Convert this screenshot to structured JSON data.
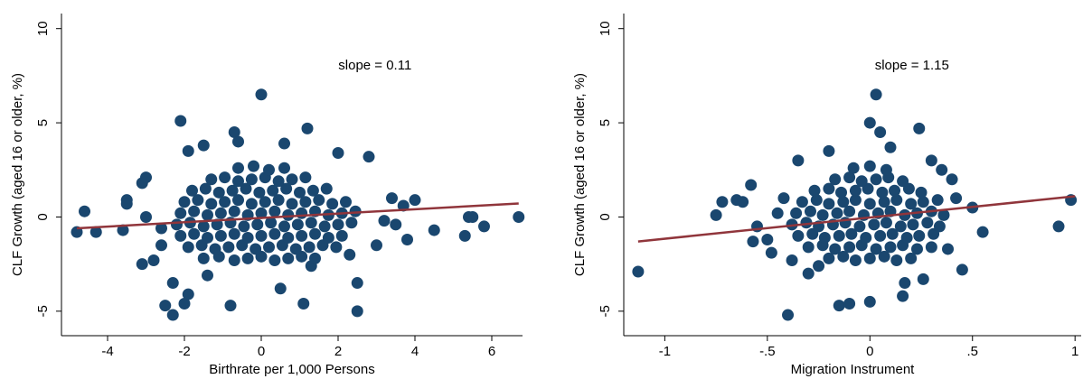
{
  "chart_data": [
    {
      "type": "scatter",
      "annotation": "slope = 0.11",
      "xlabel": "Birthrate per 1,000 Persons",
      "ylabel": "CLF Growth (aged 16 or older, %)",
      "color": "#1a476f",
      "xlim": [
        -5.2,
        6.8
      ],
      "ylim": [
        -6.3,
        10.8
      ],
      "xticks": [
        -4,
        -2,
        0,
        2,
        4,
        6
      ],
      "yticks": [
        -5,
        0,
        5,
        10
      ],
      "fit": {
        "color": "#90353b",
        "x": [
          -4.8,
          6.7
        ],
        "y": [
          -0.6,
          0.72
        ]
      },
      "x": [
        -4.8,
        -4.6,
        -4.3,
        -3.5,
        -3.5,
        -3.6,
        -3.1,
        -3.0,
        -3.1,
        -2.8,
        -2.6,
        -2.5,
        -2.3,
        -2.3,
        -2.0,
        -1.9,
        -2.1,
        -1.9,
        -1.5,
        -0.7,
        -0.6,
        0.0,
        0.6,
        1.2,
        2.0,
        2.8,
        2.5,
        2.5,
        1.1,
        0.5,
        -1.4,
        -0.8,
        3.4,
        3.7,
        4.0,
        3.5,
        3.8,
        4.5,
        5.3,
        5.4,
        5.5,
        5.8,
        6.7,
        3.0,
        3.2,
        2.3,
        1.3,
        -2.6,
        -3.0,
        -1.5,
        -1.1,
        -0.7,
        -0.35,
        0.0,
        0.35,
        0.7,
        1.05,
        1.4,
        -1.9,
        -1.55,
        -1.2,
        -0.85,
        -0.5,
        -0.15,
        0.2,
        0.55,
        0.9,
        1.25,
        1.6,
        1.95,
        -2.1,
        -1.75,
        -1.4,
        -1.05,
        -0.7,
        -0.35,
        0.0,
        0.35,
        0.7,
        1.05,
        1.4,
        1.75,
        2.1,
        -2.2,
        -1.85,
        -1.5,
        -1.15,
        -0.8,
        -0.45,
        -0.1,
        0.25,
        0.6,
        0.95,
        1.3,
        1.65,
        2.0,
        2.35,
        -2.1,
        -1.75,
        -1.4,
        -1.05,
        -0.7,
        -0.35,
        0.0,
        0.35,
        0.7,
        1.05,
        1.4,
        1.75,
        2.1,
        2.45,
        -2.0,
        -1.65,
        -1.3,
        -0.95,
        -0.6,
        -0.25,
        0.1,
        0.45,
        0.8,
        1.15,
        1.5,
        1.85,
        2.2,
        -1.8,
        -1.45,
        -1.1,
        -0.75,
        -0.4,
        -0.05,
        0.3,
        0.65,
        1.0,
        1.35,
        1.7,
        -1.3,
        -0.95,
        -0.6,
        -0.25,
        0.1,
        0.45,
        0.8,
        1.15,
        -0.6,
        -0.2,
        0.2,
        0.6
      ],
      "values": [
        -0.8,
        0.3,
        -0.8,
        0.9,
        0.7,
        -0.7,
        1.8,
        2.1,
        -2.5,
        -2.3,
        -1.5,
        -4.7,
        -3.5,
        -5.2,
        -4.6,
        -4.1,
        5.1,
        3.5,
        3.8,
        4.5,
        4.0,
        6.5,
        3.9,
        4.7,
        3.4,
        3.2,
        -3.5,
        -5.0,
        -4.6,
        -3.8,
        -3.1,
        -4.7,
        1.0,
        0.6,
        0.9,
        -0.4,
        -1.2,
        -0.7,
        -1.0,
        0.0,
        0.0,
        -0.5,
        0.0,
        -1.5,
        -0.2,
        -2.0,
        -2.6,
        -0.6,
        0.0,
        -2.2,
        -2.1,
        -2.3,
        -2.2,
        -2.1,
        -2.3,
        -2.2,
        -2.1,
        -2.2,
        -1.6,
        -1.5,
        -1.7,
        -1.6,
        -1.5,
        -1.7,
        -1.6,
        -1.5,
        -1.7,
        -1.6,
        -1.5,
        -1.6,
        -1.0,
        -0.9,
        -1.1,
        -1.0,
        -0.9,
        -1.1,
        -1.0,
        -0.9,
        -1.1,
        -1.0,
        -0.9,
        -1.1,
        -1.0,
        -0.4,
        -0.3,
        -0.5,
        -0.4,
        -0.3,
        -0.5,
        -0.4,
        -0.3,
        -0.5,
        -0.4,
        -0.3,
        -0.5,
        -0.4,
        -0.3,
        0.2,
        0.3,
        0.1,
        0.2,
        0.3,
        0.1,
        0.2,
        0.3,
        0.1,
        0.2,
        0.3,
        0.1,
        0.2,
        0.3,
        0.8,
        0.9,
        0.7,
        0.8,
        0.9,
        0.7,
        0.8,
        0.9,
        0.7,
        0.8,
        0.9,
        0.7,
        0.8,
        1.4,
        1.5,
        1.3,
        1.4,
        1.5,
        1.3,
        1.4,
        1.5,
        1.3,
        1.4,
        1.5,
        2.0,
        2.1,
        1.9,
        2.0,
        2.1,
        1.9,
        2.0,
        2.1,
        2.6,
        2.7,
        2.5,
        2.6
      ]
    },
    {
      "type": "scatter",
      "annotation": "slope = 1.15",
      "xlabel": "Migration Instrument",
      "ylabel": "CLF Growth (aged 16 or older, %)",
      "color": "#1a476f",
      "xlim": [
        -1.2,
        1.03
      ],
      "ylim": [
        -6.3,
        10.8
      ],
      "xticks": [
        -1,
        {
          "value": -0.5,
          "label": "-.5"
        },
        0,
        {
          "value": 0.5,
          "label": ".5"
        },
        1
      ],
      "yticks": [
        -5,
        0,
        5,
        10
      ],
      "fit": {
        "color": "#90353b",
        "x": [
          -1.13,
          1.0
        ],
        "y": [
          -1.3,
          1.1
        ]
      },
      "x": [
        -1.13,
        -0.72,
        -0.75,
        -0.65,
        -0.62,
        -0.58,
        -0.57,
        -0.55,
        -0.5,
        -0.45,
        -0.48,
        -0.4,
        -0.42,
        -0.35,
        -0.38,
        -0.3,
        -0.2,
        -0.15,
        -0.1,
        0.0,
        0.03,
        0.0,
        0.05,
        0.1,
        0.16,
        0.17,
        0.24,
        0.26,
        0.35,
        0.4,
        0.42,
        0.45,
        0.5,
        0.55,
        0.38,
        0.92,
        0.98,
        0.3,
        -0.25,
        -0.2,
        -0.13,
        -0.07,
        0,
        0.07,
        0.13,
        0.2,
        -0.3,
        -0.23,
        -0.17,
        -0.1,
        -0.04,
        0.03,
        0.1,
        0.16,
        0.23,
        0.3,
        -0.35,
        -0.28,
        -0.22,
        -0.15,
        -0.09,
        -0.02,
        0.05,
        0.11,
        0.18,
        0.24,
        0.31,
        -0.38,
        -0.31,
        -0.25,
        -0.18,
        -0.12,
        -0.05,
        0.02,
        0.08,
        0.15,
        0.21,
        0.28,
        0.34,
        -0.36,
        -0.29,
        -0.23,
        -0.16,
        -0.1,
        -0.03,
        0.04,
        0.1,
        0.17,
        0.23,
        0.3,
        0.36,
        -0.33,
        -0.26,
        -0.2,
        -0.13,
        -0.07,
        0,
        0.07,
        0.13,
        0.2,
        0.26,
        0.33,
        -0.27,
        -0.2,
        -0.14,
        -0.07,
        -0.01,
        0.06,
        0.12,
        0.19,
        0.25,
        -0.17,
        -0.1,
        -0.04,
        0.03,
        0.09,
        0.16,
        -0.08,
        0,
        0.08
      ],
      "values": [
        -2.9,
        0.8,
        0.1,
        0.9,
        0.8,
        1.7,
        -1.3,
        -0.5,
        -1.2,
        0.2,
        -1.9,
        -5.2,
        1.0,
        3.0,
        -2.3,
        -3.0,
        3.5,
        -4.7,
        -4.6,
        -4.5,
        6.5,
        5.0,
        4.5,
        3.7,
        -4.2,
        -3.5,
        4.7,
        -3.3,
        2.5,
        2.0,
        1.0,
        -2.8,
        0.5,
        -0.8,
        -1.7,
        -0.5,
        0.9,
        3.0,
        -2.6,
        -2.2,
        -2.1,
        -2.3,
        -2.2,
        -2.1,
        -2.3,
        -2.2,
        -1.6,
        -1.5,
        -1.7,
        -1.6,
        -1.5,
        -1.7,
        -1.6,
        -1.5,
        -1.7,
        -1.6,
        -1.0,
        -0.9,
        -1.1,
        -1.0,
        -0.9,
        -1.1,
        -1.0,
        -0.9,
        -1.1,
        -1.0,
        -0.9,
        -0.4,
        -0.3,
        -0.5,
        -0.4,
        -0.3,
        -0.5,
        -0.4,
        -0.3,
        -0.5,
        -0.4,
        -0.3,
        -0.5,
        0.2,
        0.3,
        0.1,
        0.2,
        0.3,
        0.1,
        0.2,
        0.3,
        0.1,
        0.2,
        0.3,
        0.1,
        0.8,
        0.9,
        0.7,
        0.8,
        0.9,
        0.7,
        0.8,
        0.9,
        0.7,
        0.8,
        0.9,
        1.4,
        1.5,
        1.3,
        1.4,
        1.5,
        1.3,
        1.4,
        1.5,
        1.3,
        2.0,
        2.1,
        1.9,
        2.0,
        2.1,
        1.9,
        2.6,
        2.7,
        2.5
      ]
    }
  ]
}
